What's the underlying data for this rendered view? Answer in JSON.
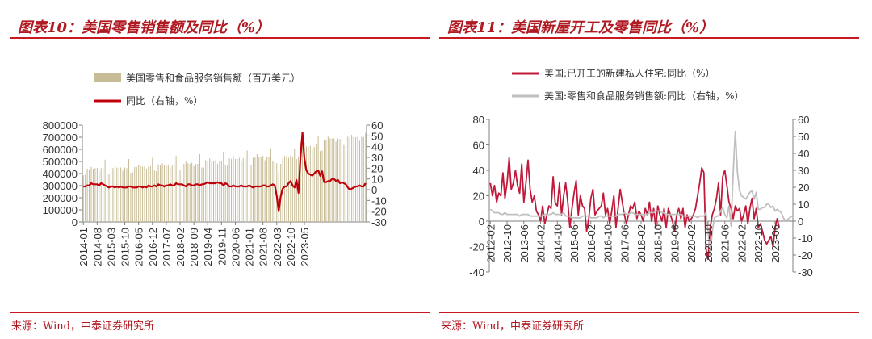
{
  "left": {
    "title": "图表10：美国零售销售额及同比（%）",
    "source": "来源：Wind，中泰证券研究所",
    "chart_data": {
      "type": "bar",
      "legend": [
        {
          "name": "美国零售和食品服务销售额（百万美元）",
          "color": "#c8bc96",
          "marker": "bar"
        },
        {
          "name": "同比（右轴，%）",
          "color": "#c0000a",
          "marker": "line"
        }
      ],
      "x_start": "2014-01",
      "x_tick_labels": [
        "2014-01",
        "2014-08",
        "2015-03",
        "2015-10",
        "2016-05",
        "2016-12",
        "2017-07",
        "2018-02",
        "2018-09",
        "2019-04",
        "2019-11",
        "2020-06",
        "2021-01",
        "2021-08",
        "2022-03",
        "2022-10",
        "2023-05"
      ],
      "left_axis": {
        "min": 0,
        "max": 800000,
        "step": 100000,
        "ticks": [
          "0",
          "100000",
          "200000",
          "300000",
          "400000",
          "500000",
          "600000",
          "700000",
          "800000"
        ]
      },
      "right_axis": {
        "min": -30,
        "max": 60,
        "step": 10,
        "ticks": [
          "-30",
          "-20",
          "-10",
          "0",
          "10",
          "20",
          "30",
          "40",
          "50",
          "60"
        ]
      },
      "series": [
        {
          "name": "美国零售和食品服务销售额（百万美元）",
          "axis": "left",
          "values": [
            385000,
            390000,
            440000,
            435000,
            455000,
            440000,
            445000,
            448000,
            418000,
            445000,
            445000,
            515000,
            395000,
            395000,
            445000,
            445000,
            470000,
            450000,
            450000,
            450000,
            425000,
            450000,
            445000,
            520000,
            405000,
            410000,
            455000,
            455000,
            475000,
            460000,
            455000,
            460000,
            440000,
            455000,
            460000,
            530000,
            425000,
            420000,
            475000,
            465000,
            485000,
            470000,
            465000,
            475000,
            450000,
            470000,
            475000,
            545000,
            435000,
            430000,
            490000,
            480000,
            500000,
            485000,
            480000,
            490000,
            460000,
            480000,
            480000,
            560000,
            450000,
            450000,
            510000,
            505000,
            525000,
            510000,
            505000,
            510000,
            480000,
            505000,
            505000,
            580000,
            470000,
            465000,
            525000,
            520000,
            545000,
            520000,
            520000,
            530000,
            495000,
            525000,
            520000,
            590000,
            480000,
            475000,
            530000,
            535000,
            560000,
            540000,
            540000,
            545000,
            510000,
            540000,
            535000,
            605000,
            500000,
            490000,
            485000,
            410000,
            480000,
            525000,
            545000,
            545000,
            530000,
            550000,
            540000,
            600000,
            520000,
            540000,
            660000,
            645000,
            655000,
            625000,
            620000,
            630000,
            600000,
            620000,
            640000,
            710000,
            585000,
            590000,
            680000,
            675000,
            705000,
            690000,
            690000,
            690000,
            665000,
            690000,
            685000,
            745000,
            635000,
            630000,
            705000,
            695000,
            720000,
            700000,
            700000,
            710000,
            670000,
            705000,
            700000,
            735000
          ]
        },
        {
          "name": "同比（右轴，%）",
          "axis": "right",
          "values": [
            3,
            3,
            4,
            4,
            6,
            5,
            5,
            5,
            4,
            6,
            5,
            4,
            3,
            2,
            3,
            3,
            2,
            3,
            2,
            3,
            2,
            2,
            2,
            3,
            3,
            2,
            2,
            2,
            3,
            3,
            2,
            3,
            2,
            4,
            3,
            3,
            4,
            3,
            5,
            4,
            4,
            3,
            4,
            4,
            5,
            4,
            4,
            6,
            5,
            5,
            5,
            4,
            3,
            5,
            5,
            4,
            4,
            5,
            5,
            4,
            5,
            5,
            6,
            7,
            6,
            6,
            6,
            6,
            7,
            6,
            6,
            4,
            6,
            5,
            3,
            3,
            4,
            3,
            3,
            3,
            4,
            3,
            3,
            3,
            4,
            3,
            2,
            3,
            3,
            3,
            3,
            4,
            4,
            3,
            3,
            4,
            5,
            4,
            -6,
            -20,
            -6,
            1,
            3,
            3,
            6,
            8,
            4,
            2,
            9,
            -3,
            29,
            53,
            29,
            18,
            15,
            14,
            13,
            15,
            17,
            18,
            13,
            17,
            7,
            7,
            8,
            8,
            10,
            10,
            8,
            9,
            6,
            7,
            6,
            5,
            2,
            0,
            1,
            2,
            3,
            3,
            4,
            3,
            3,
            6
          ]
        }
      ]
    }
  },
  "right": {
    "title": "图表11：美国新屋开工及零售同比（%）",
    "source": "来源：Wind，中泰证券研究所",
    "chart_data": {
      "type": "line",
      "legend": [
        {
          "name": "美国:已开工的新建私人住宅:同比（%）",
          "color": "#c0193a",
          "marker": "line"
        },
        {
          "name": "美国:零售和食品服务销售额:同比（右轴，%）",
          "color": "#bfbfbf",
          "marker": "line"
        }
      ],
      "x_start": "2012-02",
      "x_tick_labels": [
        "2012-02",
        "2012-10",
        "2013-06",
        "2014-02",
        "2014-10",
        "2015-06",
        "2016-02",
        "2016-10",
        "2017-06",
        "2018-02",
        "2018-10",
        "2019-06",
        "2020-02",
        "2020-10",
        "2021-06",
        "2022-02",
        "2022-10",
        "2023-06"
      ],
      "left_axis": {
        "min": -40,
        "max": 80,
        "step": 20,
        "ticks": [
          "-40",
          "-20",
          "0",
          "20",
          "40",
          "60",
          "80"
        ]
      },
      "right_axis": {
        "min": -30,
        "max": 60,
        "step": 10,
        "ticks": [
          "-30",
          "-20",
          "-10",
          "0",
          "10",
          "20",
          "30",
          "40",
          "50",
          "60"
        ]
      },
      "series": [
        {
          "name": "美国:已开工的新建私人住宅:同比（%）",
          "axis": "left",
          "values": [
            30,
            20,
            28,
            15,
            22,
            20,
            38,
            18,
            30,
            50,
            25,
            30,
            40,
            28,
            22,
            45,
            15,
            30,
            48,
            25,
            15,
            20,
            8,
            5,
            0,
            12,
            -2,
            5,
            12,
            10,
            35,
            14,
            12,
            30,
            5,
            20,
            30,
            15,
            -5,
            10,
            22,
            32,
            5,
            20,
            12,
            10,
            -8,
            2,
            18,
            25,
            5,
            8,
            10,
            12,
            22,
            5,
            10,
            -2,
            8,
            20,
            -5,
            10,
            25,
            15,
            5,
            -2,
            5,
            12,
            10,
            15,
            2,
            8,
            5,
            0,
            10,
            5,
            15,
            0,
            10,
            -5,
            12,
            5,
            0,
            10,
            -5,
            10,
            5,
            0,
            -8,
            5,
            10,
            2,
            10,
            -5,
            5,
            0,
            2,
            5,
            10,
            20,
            30,
            42,
            38,
            -22,
            -30,
            -5,
            5,
            10,
            18,
            30,
            5,
            35,
            40,
            28,
            15,
            10,
            2,
            12,
            8,
            10,
            0,
            5,
            12,
            -2,
            10,
            18,
            2,
            10,
            -5,
            -2,
            -8,
            -15,
            -18,
            -15,
            -12,
            -20,
            -5,
            2,
            -5
          ]
        },
        {
          "name": "美国:零售和食品服务销售额:同比（右轴，%）",
          "axis": "right",
          "values": [
            7,
            6,
            5,
            5,
            5,
            4,
            4,
            5,
            4,
            4,
            4,
            4,
            4,
            4,
            3,
            4,
            4,
            4,
            4,
            3,
            3,
            3,
            3,
            3,
            3,
            3,
            4,
            4,
            4,
            4,
            5,
            4,
            4,
            4,
            4,
            5,
            3,
            3,
            3,
            2,
            2,
            2,
            2,
            2,
            3,
            3,
            3,
            3,
            2,
            2,
            2,
            2,
            3,
            3,
            2,
            3,
            3,
            3,
            3,
            3,
            3,
            4,
            4,
            4,
            5,
            4,
            4,
            5,
            5,
            4,
            4,
            4,
            4,
            4,
            4,
            4,
            5,
            5,
            5,
            6,
            6,
            6,
            5,
            5,
            4,
            4,
            4,
            4,
            4,
            4,
            4,
            4,
            3,
            3,
            3,
            3,
            3,
            3,
            3,
            2,
            3,
            3,
            3,
            5,
            -6,
            -20,
            -6,
            2,
            3,
            3,
            6,
            8,
            4,
            2,
            9,
            -3,
            29,
            53,
            29,
            18,
            15,
            14,
            13,
            15,
            17,
            18,
            13,
            17,
            7,
            7,
            8,
            8,
            10,
            10,
            8,
            9,
            6,
            7,
            6,
            5,
            2,
            0,
            1,
            2,
            3
          ]
        }
      ]
    }
  }
}
